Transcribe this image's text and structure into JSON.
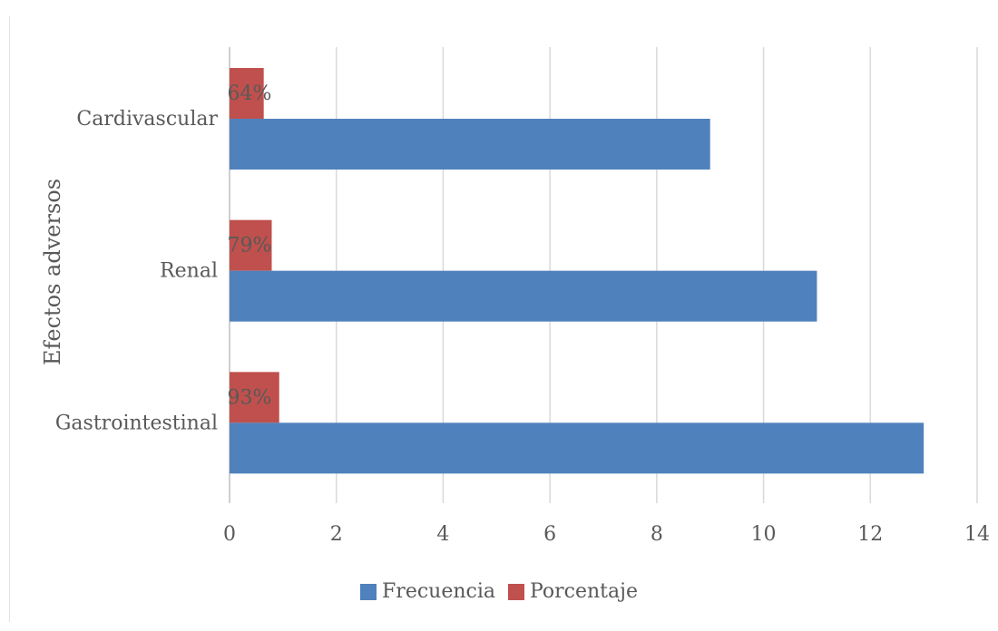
{
  "chart_data": {
    "type": "bar",
    "orientation": "horizontal",
    "title": "",
    "xlabel": "",
    "ylabel": "Efectos adversos",
    "categories": [
      "Cardivascular",
      "Renal",
      "Gastrointestinal"
    ],
    "series": [
      {
        "name": "Frecuencia",
        "color": "#4f81bd",
        "values": [
          9,
          11,
          13
        ]
      },
      {
        "name": "Porcentaje",
        "color": "#c0504d",
        "values": [
          0.64,
          0.79,
          0.93
        ],
        "data_labels": [
          "64%",
          "79%",
          "93%"
        ]
      }
    ],
    "xlim": [
      0,
      14
    ],
    "x_ticks": [
      "0",
      "2",
      "4",
      "6",
      "8",
      "10",
      "12",
      "14"
    ],
    "grid": "vertical",
    "legend_position": "bottom"
  }
}
